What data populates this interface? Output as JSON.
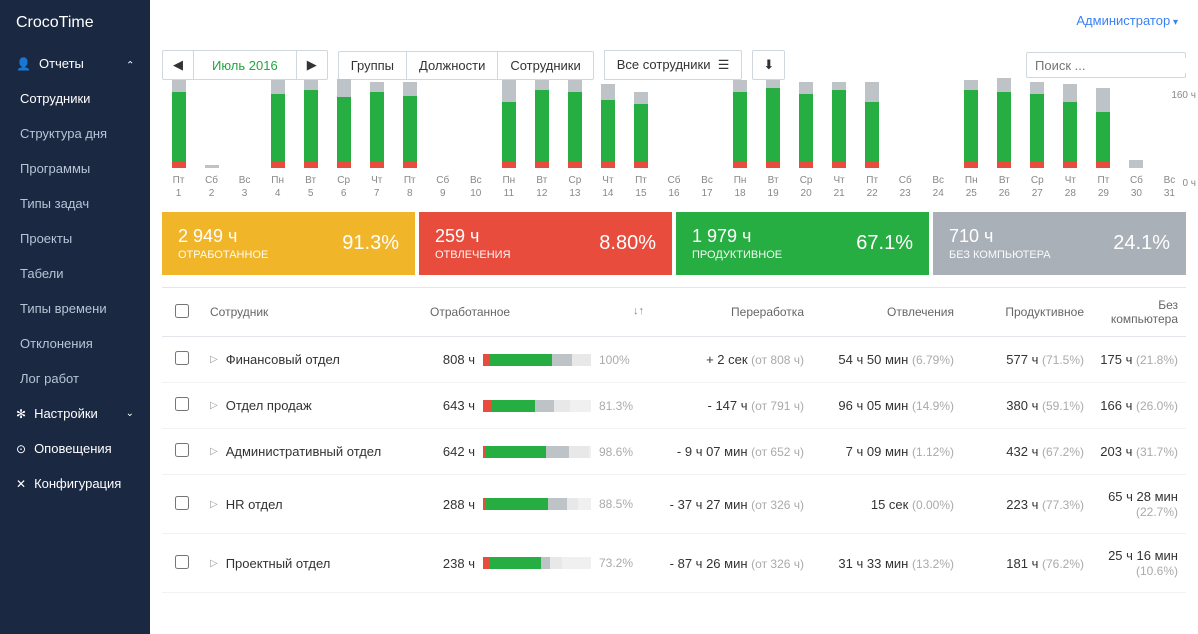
{
  "brand": "CrocoTime",
  "topbar": {
    "user": "Администратор"
  },
  "sidebar": {
    "groups": [
      {
        "icon": "👤",
        "label": "Отчеты",
        "expanded": true,
        "items": [
          {
            "label": "Сотрудники",
            "active": true
          },
          {
            "label": "Структура дня"
          },
          {
            "label": "Программы"
          },
          {
            "label": "Типы задач"
          },
          {
            "label": "Проекты"
          },
          {
            "label": "Табели"
          },
          {
            "label": "Типы времени"
          },
          {
            "label": "Отклонения"
          },
          {
            "label": "Лог работ"
          }
        ]
      }
    ],
    "sections": [
      {
        "icon": "✻",
        "label": "Настройки",
        "caret": true
      },
      {
        "icon": "⊙",
        "label": "Оповещения"
      },
      {
        "icon": "✕",
        "label": "Конфигурация"
      }
    ]
  },
  "toolbar": {
    "prev": "◀",
    "next": "▶",
    "period": "Июль 2016",
    "tabs": [
      "Группы",
      "Должности",
      "Сотрудники"
    ],
    "filter": "Все сотрудники",
    "filter_icon": "▼",
    "download_icon": "⬇",
    "search_placeholder": "Поиск ...",
    "search_icon": "🔍"
  },
  "chart": {
    "y_max_label": "160 ч",
    "y_min_label": "0 ч",
    "colors": {
      "red": "#e74c3c",
      "green": "#27ae42",
      "grey": "#bdc3c7"
    },
    "days": [
      {
        "dow": "Пт",
        "d": "1",
        "red": 6,
        "green": 70,
        "grey": 12
      },
      {
        "dow": "Сб",
        "d": "2",
        "red": 0,
        "green": 0,
        "grey": 3
      },
      {
        "dow": "Вс",
        "d": "3",
        "red": 0,
        "green": 0,
        "grey": 0
      },
      {
        "dow": "Пн",
        "d": "4",
        "red": 6,
        "green": 68,
        "grey": 14
      },
      {
        "dow": "Вт",
        "d": "5",
        "red": 6,
        "green": 72,
        "grey": 10
      },
      {
        "dow": "Ср",
        "d": "6",
        "red": 6,
        "green": 65,
        "grey": 18
      },
      {
        "dow": "Чт",
        "d": "7",
        "red": 6,
        "green": 70,
        "grey": 10
      },
      {
        "dow": "Пт",
        "d": "8",
        "red": 6,
        "green": 66,
        "grey": 14
      },
      {
        "dow": "Сб",
        "d": "9",
        "red": 0,
        "green": 0,
        "grey": 0
      },
      {
        "dow": "Вс",
        "d": "10",
        "red": 0,
        "green": 0,
        "grey": 0
      },
      {
        "dow": "Пн",
        "d": "11",
        "red": 6,
        "green": 60,
        "grey": 22
      },
      {
        "dow": "Вт",
        "d": "12",
        "red": 6,
        "green": 72,
        "grey": 10
      },
      {
        "dow": "Ср",
        "d": "13",
        "red": 6,
        "green": 70,
        "grey": 12
      },
      {
        "dow": "Чт",
        "d": "14",
        "red": 6,
        "green": 62,
        "grey": 16
      },
      {
        "dow": "Пт",
        "d": "15",
        "red": 6,
        "green": 58,
        "grey": 12
      },
      {
        "dow": "Сб",
        "d": "16",
        "red": 0,
        "green": 0,
        "grey": 0
      },
      {
        "dow": "Вс",
        "d": "17",
        "red": 0,
        "green": 0,
        "grey": 0
      },
      {
        "dow": "Пн",
        "d": "18",
        "red": 6,
        "green": 70,
        "grey": 12
      },
      {
        "dow": "Вт",
        "d": "19",
        "red": 6,
        "green": 74,
        "grey": 8
      },
      {
        "dow": "Ср",
        "d": "20",
        "red": 6,
        "green": 68,
        "grey": 12
      },
      {
        "dow": "Чт",
        "d": "21",
        "red": 6,
        "green": 72,
        "grey": 8
      },
      {
        "dow": "Пт",
        "d": "22",
        "red": 6,
        "green": 60,
        "grey": 20
      },
      {
        "dow": "Сб",
        "d": "23",
        "red": 0,
        "green": 0,
        "grey": 0
      },
      {
        "dow": "Вс",
        "d": "24",
        "red": 0,
        "green": 0,
        "grey": 0
      },
      {
        "dow": "Пн",
        "d": "25",
        "red": 6,
        "green": 72,
        "grey": 10
      },
      {
        "dow": "Вт",
        "d": "26",
        "red": 6,
        "green": 70,
        "grey": 14
      },
      {
        "dow": "Ср",
        "d": "27",
        "red": 6,
        "green": 68,
        "grey": 12
      },
      {
        "dow": "Чт",
        "d": "28",
        "red": 6,
        "green": 60,
        "grey": 18
      },
      {
        "dow": "Пт",
        "d": "29",
        "red": 6,
        "green": 50,
        "grey": 24
      },
      {
        "dow": "Сб",
        "d": "30",
        "red": 0,
        "green": 0,
        "grey": 8
      },
      {
        "dow": "Вс",
        "d": "31",
        "red": 0,
        "green": 0,
        "grey": 0
      }
    ]
  },
  "cards": [
    {
      "color": "yellow",
      "value": "2 949 ч",
      "label": "ОТРАБОТАННОЕ",
      "pct": "91.3%"
    },
    {
      "color": "red",
      "value": "259 ч",
      "label": "ОТВЛЕЧЕНИЯ",
      "pct": "8.80%"
    },
    {
      "color": "green",
      "value": "1 979 ч",
      "label": "ПРОДУКТИВНОЕ",
      "pct": "67.1%"
    },
    {
      "color": "grey",
      "value": "710 ч",
      "label": "БЕЗ КОМПЬЮТЕРА",
      "pct": "24.1%"
    }
  ],
  "table": {
    "headers": {
      "name": "Сотрудник",
      "worked": "Отработанное",
      "over": "Переработка",
      "dist": "Отвлечения",
      "prod": "Продуктивное",
      "nopc": "Без компьютера"
    },
    "rows": [
      {
        "name": "Финансовый отдел",
        "hrs": "808 ч",
        "pct": "100%",
        "bar": {
          "red": 6,
          "green": 58,
          "grey": 18,
          "total": 100
        },
        "over_v": "+ 2 сек",
        "over_m": "(от 808 ч)",
        "dist_v": "54 ч 50 мин",
        "dist_m": "(6.79%)",
        "prod_v": "577 ч",
        "prod_m": "(71.5%)",
        "nopc_v": "175 ч",
        "nopc_m": "(21.8%)"
      },
      {
        "name": "Отдел продаж",
        "hrs": "643 ч",
        "pct": "81.3%",
        "bar": {
          "red": 8,
          "green": 40,
          "grey": 18,
          "total": 81
        },
        "over_v": "- 147 ч",
        "over_m": "(от 791 ч)",
        "dist_v": "96 ч 05 мин",
        "dist_m": "(14.9%)",
        "prod_v": "380 ч",
        "prod_m": "(59.1%)",
        "nopc_v": "166 ч",
        "nopc_m": "(26.0%)"
      },
      {
        "name": "Административный отдел",
        "hrs": "642 ч",
        "pct": "98.6%",
        "bar": {
          "red": 2,
          "green": 56,
          "grey": 22,
          "total": 98
        },
        "over_v": "- 9 ч 07 мин",
        "over_m": "(от 652 ч)",
        "dist_v": "7 ч 09 мин",
        "dist_m": "(1.12%)",
        "prod_v": "432 ч",
        "prod_m": "(67.2%)",
        "nopc_v": "203 ч",
        "nopc_m": "(31.7%)"
      },
      {
        "name": "HR отдел",
        "hrs": "288 ч",
        "pct": "88.5%",
        "bar": {
          "red": 2,
          "green": 58,
          "grey": 18,
          "total": 88
        },
        "over_v": "- 37 ч 27 мин",
        "over_m": "(от 326 ч)",
        "dist_v": "15 сек",
        "dist_m": "(0.00%)",
        "prod_v": "223 ч",
        "prod_m": "(77.3%)",
        "nopc_v": "65 ч 28 мин",
        "nopc_m": "(22.7%)"
      },
      {
        "name": "Проектный отдел",
        "hrs": "238 ч",
        "pct": "73.2%",
        "bar": {
          "red": 6,
          "green": 48,
          "grey": 8,
          "total": 73
        },
        "over_v": "- 87 ч 26 мин",
        "over_m": "(от 326 ч)",
        "dist_v": "31 ч 33 мин",
        "dist_m": "(13.2%)",
        "prod_v": "181 ч",
        "prod_m": "(76.2%)",
        "nopc_v": "25 ч 16 мин",
        "nopc_m": "(10.6%)"
      }
    ]
  }
}
